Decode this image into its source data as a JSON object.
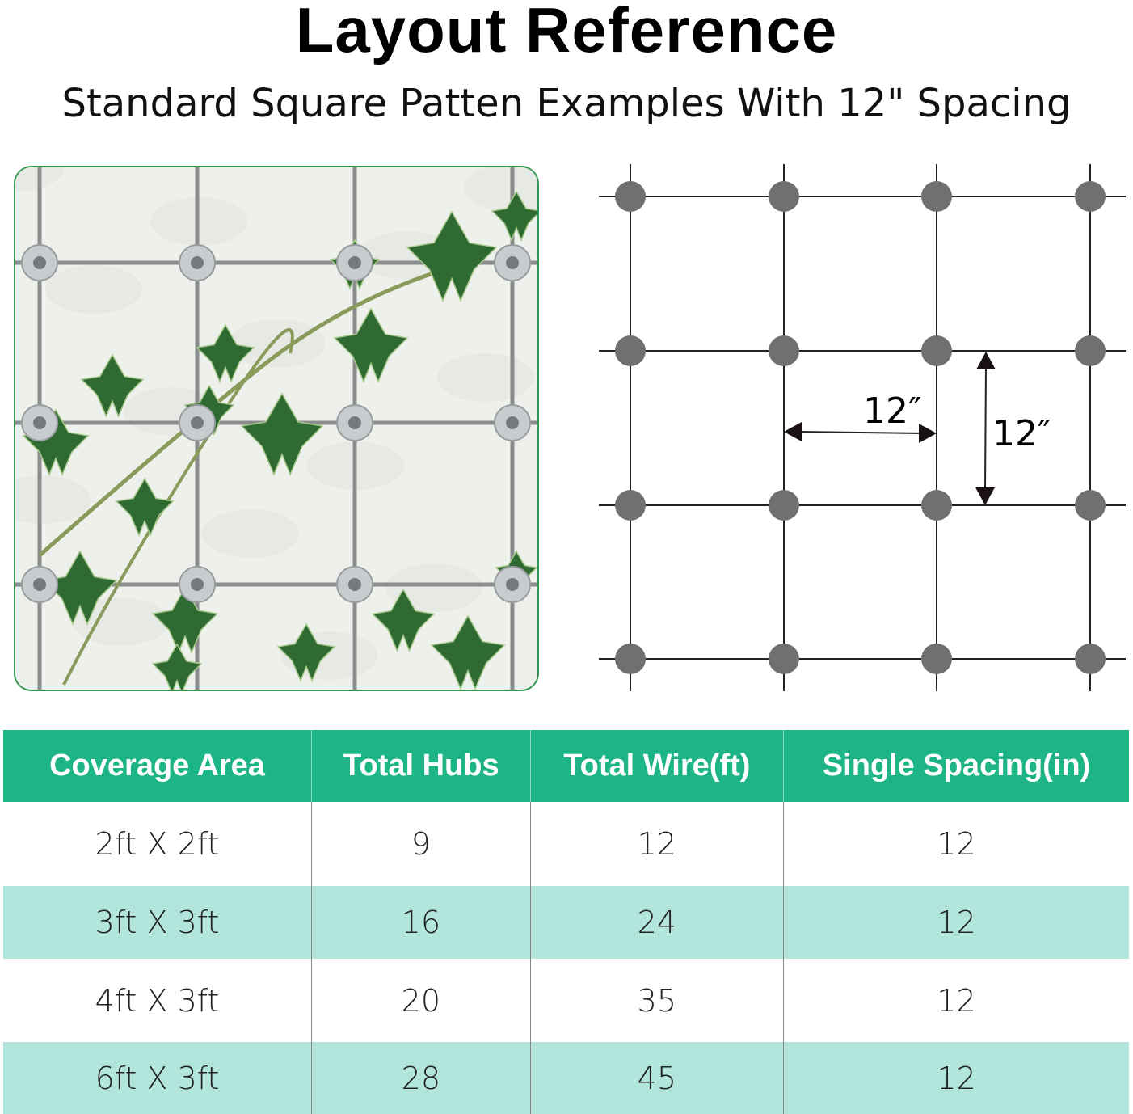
{
  "header": {
    "title": "Layout Reference",
    "subtitle": "Standard Square Patten Examples With 12\" Spacing"
  },
  "diagram": {
    "horizontal_label": "12″",
    "vertical_label": "12″",
    "hub_color": "#707070",
    "rows": 4,
    "cols": 4
  },
  "colors": {
    "accent": "#1db586",
    "stripe": "#b2e5dc",
    "photo_border": "#2f9a4f"
  },
  "table": {
    "headers": [
      "Coverage Area",
      "Total Hubs",
      "Total Wire(ft)",
      "Single Spacing(in)"
    ],
    "rows": [
      [
        "2ft X 2ft",
        "9",
        "12",
        "12"
      ],
      [
        "3ft X 3ft",
        "16",
        "24",
        "12"
      ],
      [
        "4ft X 3ft",
        "20",
        "35",
        "12"
      ],
      [
        "6ft X 3ft",
        "28",
        "45",
        "12"
      ]
    ]
  }
}
